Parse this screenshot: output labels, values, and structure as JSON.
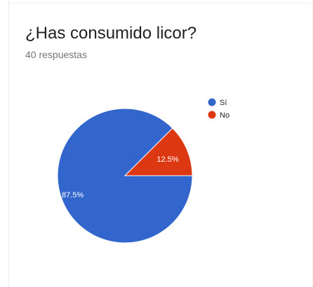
{
  "question": {
    "title": "¿Has consumido licor?",
    "responses_label": "40 respuestas"
  },
  "chart_data": {
    "type": "pie",
    "title": "¿Has consumido licor?",
    "subtitle": "40 respuestas",
    "categories": [
      "Sí",
      "No"
    ],
    "values": [
      87.5,
      12.5
    ],
    "value_labels": [
      "87.5%",
      "12.5%"
    ],
    "colors": [
      "#3366cc",
      "#dc3912"
    ],
    "legend_position": "right"
  }
}
